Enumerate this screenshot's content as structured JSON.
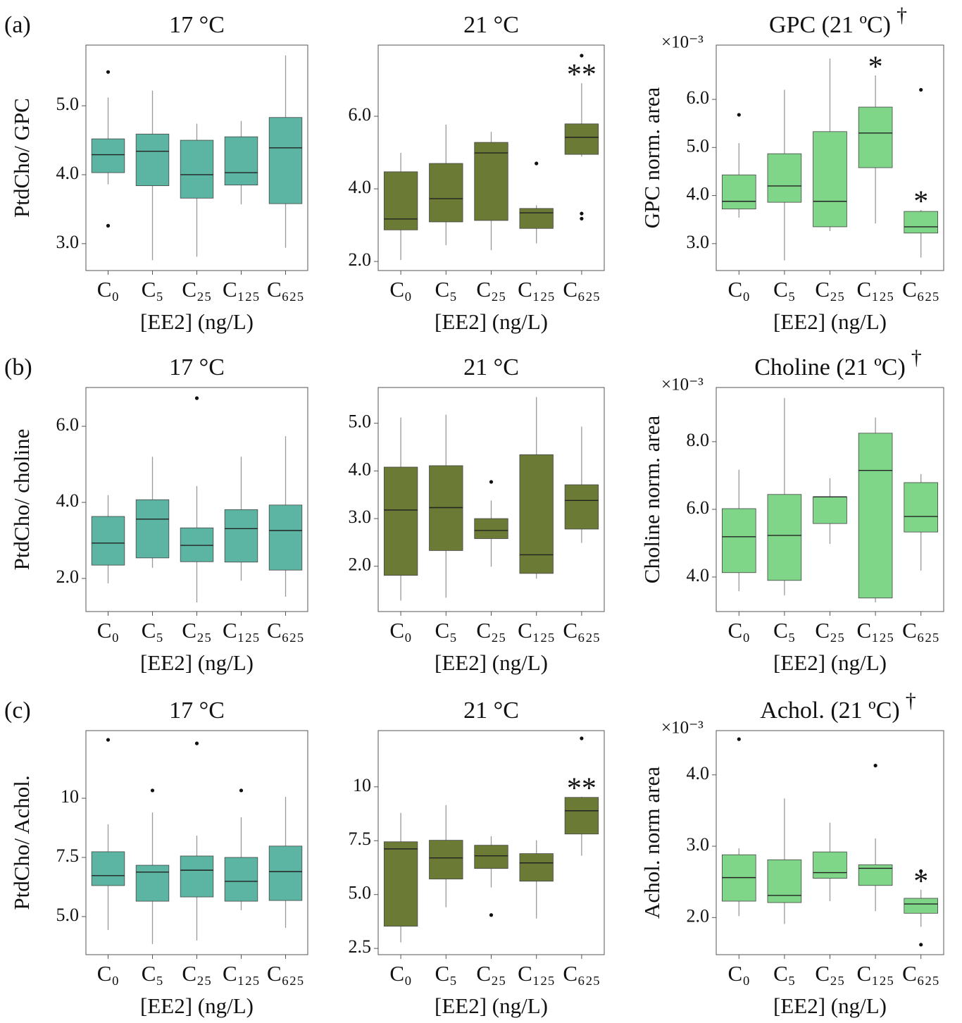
{
  "chart_data": [
    {
      "type": "box",
      "panel_label": "(a)",
      "title": "17 °C",
      "ylabel": "PtdCho/ GPC",
      "xlabel": "[EE2] (ng/L)",
      "color": "#5bb5a2",
      "categories": [
        "C₀",
        "C₅",
        "C₂₅",
        "C₁₂₅",
        "C₆₂₅"
      ],
      "ylim": [
        2.61,
        5.88
      ],
      "yticks": [
        {
          "value": 3,
          "label": "3.0"
        },
        {
          "value": 4,
          "label": "4.0"
        },
        {
          "value": 5,
          "label": "5.0"
        }
      ],
      "boxes": [
        {
          "min": 3.86,
          "q1": 4.03,
          "median": 4.29,
          "q3": 4.52,
          "max": 5.12,
          "outliers": [
            5.49,
            3.26
          ]
        },
        {
          "min": 2.76,
          "q1": 3.84,
          "median": 4.34,
          "q3": 4.59,
          "max": 5.22
        },
        {
          "min": 2.81,
          "q1": 3.66,
          "median": 4.0,
          "q3": 4.5,
          "max": 4.74
        },
        {
          "min": 3.57,
          "q1": 3.85,
          "median": 4.03,
          "q3": 4.55,
          "max": 4.78
        },
        {
          "min": 2.94,
          "q1": 3.58,
          "median": 4.39,
          "q3": 4.83,
          "max": 5.73
        }
      ]
    },
    {
      "type": "box",
      "title": "21 °C",
      "xlabel": "[EE2] (ng/L)",
      "color": "#6b7a35",
      "categories": [
        "C₀",
        "C₅",
        "C₂₅",
        "C₁₂₅",
        "C₆₂₅"
      ],
      "ylim": [
        1.75,
        7.96
      ],
      "yticks": [
        {
          "value": 2,
          "label": "2.0"
        },
        {
          "value": 4,
          "label": "4.0"
        },
        {
          "value": 6,
          "label": "6.0"
        }
      ],
      "boxes": [
        {
          "min": 2.04,
          "q1": 2.87,
          "median": 3.17,
          "q3": 4.47,
          "max": 4.99
        },
        {
          "min": 2.45,
          "q1": 3.09,
          "median": 3.73,
          "q3": 4.7,
          "max": 5.77
        },
        {
          "min": 2.31,
          "q1": 3.13,
          "median": 4.99,
          "q3": 5.28,
          "max": 5.57
        },
        {
          "min": 2.5,
          "q1": 2.91,
          "median": 3.34,
          "q3": 3.46,
          "max": 3.55,
          "outliers": [
            4.7
          ]
        },
        {
          "min": 4.89,
          "q1": 4.95,
          "median": 5.42,
          "q3": 5.79,
          "max": 6.91,
          "outliers": [
            7.67,
            3.32,
            3.18
          ]
        }
      ],
      "annotations": [
        {
          "category": "C₆₂₅",
          "text": "**"
        }
      ]
    },
    {
      "type": "box",
      "title": "GPC (21 ºC)",
      "dagger": "†",
      "exponent_label": "×10⁻³",
      "ylabel": "GPC norm. area",
      "xlabel": "[EE2] (ng/L)",
      "color": "#7fd688",
      "categories": [
        "C₀",
        "C₅",
        "C₂₅",
        "C₁₂₅",
        "C₆₂₅"
      ],
      "ylim": [
        2.44,
        7.13
      ],
      "yticks": [
        {
          "value": 3,
          "label": "3.0"
        },
        {
          "value": 4,
          "label": "4.0"
        },
        {
          "value": 5,
          "label": "5.0"
        },
        {
          "value": 6,
          "label": "6.0"
        }
      ],
      "boxes": [
        {
          "min": 3.54,
          "q1": 3.72,
          "median": 3.88,
          "q3": 4.43,
          "max": 5.09,
          "outliers": [
            5.68
          ]
        },
        {
          "min": 2.65,
          "q1": 3.86,
          "median": 4.2,
          "q3": 4.87,
          "max": 6.2
        },
        {
          "min": 3.26,
          "q1": 3.35,
          "median": 3.88,
          "q3": 5.33,
          "max": 6.85
        },
        {
          "min": 3.42,
          "q1": 4.58,
          "median": 5.3,
          "q3": 5.84,
          "max": 6.5
        },
        {
          "min": 2.71,
          "q1": 3.22,
          "median": 3.35,
          "q3": 3.67,
          "max": 3.7,
          "outliers": [
            6.2
          ]
        }
      ],
      "annotations": [
        {
          "category": "C₁₂₅",
          "text": "*"
        },
        {
          "category": "C₆₂₅",
          "text": "*"
        }
      ]
    },
    {
      "type": "box",
      "panel_label": "(b)",
      "title": "17 °C",
      "ylabel": "PtdCho/ choline",
      "xlabel": "[EE2] (ng/L)",
      "color": "#5bb5a2",
      "categories": [
        "C₀",
        "C₅",
        "C₂₅",
        "C₁₂₅",
        "C₆₂₅"
      ],
      "ylim": [
        1.13,
        7.02
      ],
      "yticks": [
        {
          "value": 2,
          "label": "2.0"
        },
        {
          "value": 4,
          "label": "4.0"
        },
        {
          "value": 6,
          "label": "6.0"
        }
      ],
      "boxes": [
        {
          "min": 1.87,
          "q1": 2.35,
          "median": 2.93,
          "q3": 3.63,
          "max": 4.19
        },
        {
          "min": 2.28,
          "q1": 2.54,
          "median": 3.56,
          "q3": 4.07,
          "max": 5.2
        },
        {
          "min": 1.37,
          "q1": 2.44,
          "median": 2.87,
          "q3": 3.33,
          "max": 4.43,
          "outliers": [
            6.74
          ]
        },
        {
          "min": 1.94,
          "q1": 2.43,
          "median": 3.31,
          "q3": 3.81,
          "max": 5.2
        },
        {
          "min": 1.52,
          "q1": 2.22,
          "median": 3.26,
          "q3": 3.93,
          "max": 5.74
        }
      ]
    },
    {
      "type": "box",
      "title": "21 °C",
      "xlabel": "[EE2] (ng/L)",
      "color": "#6b7a35",
      "categories": [
        "C₀",
        "C₅",
        "C₂₅",
        "C₁₂₅",
        "C₆₂₅"
      ],
      "ylim": [
        1.05,
        5.75
      ],
      "yticks": [
        {
          "value": 2,
          "label": "2.0"
        },
        {
          "value": 3,
          "label": "3.0"
        },
        {
          "value": 4,
          "label": "4.0"
        },
        {
          "value": 5,
          "label": "5.0"
        }
      ],
      "boxes": [
        {
          "min": 1.28,
          "q1": 1.81,
          "median": 3.18,
          "q3": 4.08,
          "max": 5.12
        },
        {
          "min": 1.34,
          "q1": 2.33,
          "median": 3.23,
          "q3": 4.11,
          "max": 5.18
        },
        {
          "min": 1.99,
          "q1": 2.58,
          "median": 2.75,
          "q3": 3.0,
          "max": 3.38,
          "outliers": [
            3.77
          ]
        },
        {
          "min": 1.74,
          "q1": 1.85,
          "median": 2.24,
          "q3": 4.34,
          "max": 5.55
        },
        {
          "min": 2.49,
          "q1": 2.78,
          "median": 3.38,
          "q3": 3.71,
          "max": 4.93
        }
      ]
    },
    {
      "type": "box",
      "title": "Choline (21 ºC)",
      "dagger": "†",
      "exponent_label": "×10⁻³",
      "ylabel": "Choline norm. area",
      "xlabel": "[EE2] (ng/L)",
      "color": "#7fd688",
      "categories": [
        "C₀",
        "C₅",
        "C₂₅",
        "C₁₂₅",
        "C₆₂₅"
      ],
      "ylim": [
        2.98,
        9.6
      ],
      "yticks": [
        {
          "value": 4,
          "label": "4.0"
        },
        {
          "value": 6,
          "label": "6.0"
        },
        {
          "value": 8,
          "label": "8.0"
        }
      ],
      "boxes": [
        {
          "min": 3.58,
          "q1": 4.13,
          "median": 5.19,
          "q3": 6.02,
          "max": 7.17
        },
        {
          "min": 3.46,
          "q1": 3.9,
          "median": 5.23,
          "q3": 6.44,
          "max": 9.29
        },
        {
          "min": 4.98,
          "q1": 5.58,
          "median": 6.37,
          "q3": 6.37,
          "max": 6.92
        },
        {
          "min": 3.25,
          "q1": 3.38,
          "median": 7.15,
          "q3": 8.25,
          "max": 8.71
        },
        {
          "min": 4.19,
          "q1": 5.33,
          "median": 5.79,
          "q3": 6.79,
          "max": 7.04
        }
      ]
    },
    {
      "type": "box",
      "panel_label": "(c)",
      "title": "17 °C",
      "ylabel": "PtdCho/ Achol.",
      "xlabel": "[EE2] (ng/L)",
      "color": "#5bb5a2",
      "categories": [
        "C₀",
        "C₅",
        "C₂₅",
        "C₁₂₅",
        "C₆₂₅"
      ],
      "ylim": [
        3.39,
        12.86
      ],
      "yticks": [
        {
          "value": 5,
          "label": "5.0"
        },
        7.5,
        10
      ],
      "boxes": [
        {
          "min": 4.43,
          "q1": 6.31,
          "median": 6.73,
          "q3": 7.74,
          "max": 8.9,
          "outliers": [
            12.47
          ]
        },
        {
          "min": 3.84,
          "q1": 5.65,
          "median": 6.88,
          "q3": 7.17,
          "max": 9.4,
          "outliers": [
            10.33
          ]
        },
        {
          "min": 3.99,
          "q1": 5.83,
          "median": 6.96,
          "q3": 7.56,
          "max": 8.42,
          "outliers": [
            12.32
          ]
        },
        {
          "min": 5.27,
          "q1": 5.65,
          "median": 6.49,
          "q3": 7.5,
          "max": 9.2,
          "outliers": [
            10.33
          ]
        },
        {
          "min": 4.52,
          "q1": 5.68,
          "median": 6.9,
          "q3": 7.98,
          "max": 10.06
        }
      ]
    },
    {
      "type": "box",
      "title": "21 °C",
      "xlabel": "[EE2] (ng/L)",
      "color": "#6b7a35",
      "categories": [
        "C₀",
        "C₅",
        "C₂₅",
        "C₁₂₅",
        "C₆₂₅"
      ],
      "ylim": [
        2.21,
        12.61
      ],
      "yticks": [
        2.5,
        {
          "value": 5,
          "label": "5.0"
        },
        7.5,
        10
      ],
      "boxes": [
        {
          "min": 2.78,
          "q1": 3.53,
          "median": 7.12,
          "q3": 7.45,
          "max": 8.79
        },
        {
          "min": 4.41,
          "q1": 5.72,
          "median": 6.7,
          "q3": 7.52,
          "max": 9.15
        },
        {
          "min": 5.33,
          "q1": 6.21,
          "median": 6.8,
          "q3": 7.29,
          "max": 7.71,
          "outliers": [
            4.05
          ]
        },
        {
          "min": 3.89,
          "q1": 5.62,
          "median": 6.47,
          "q3": 6.9,
          "max": 7.52
        },
        {
          "min": 6.8,
          "q1": 7.81,
          "median": 8.89,
          "q3": 9.51,
          "max": 9.54,
          "outliers": [
            12.25
          ]
        }
      ],
      "annotations": [
        {
          "category": "C₆₂₅",
          "text": "**"
        }
      ]
    },
    {
      "type": "box",
      "title": "Achol. (21 ºC)",
      "dagger": "†",
      "exponent_label": "×10⁻³",
      "ylabel": "Achol. norm area",
      "xlabel": "[EE2] (ng/L)",
      "color": "#7fd688",
      "categories": [
        "C₀",
        "C₅",
        "C₂₅",
        "C₁₂₅",
        "C₆₂₅"
      ],
      "ylim": [
        1.48,
        4.62
      ],
      "yticks": [
        {
          "value": 2,
          "label": "2.0"
        },
        {
          "value": 3,
          "label": "3.0"
        },
        {
          "value": 4,
          "label": "4.0"
        }
      ],
      "boxes": [
        {
          "min": 2.02,
          "q1": 2.23,
          "median": 2.56,
          "q3": 2.88,
          "max": 2.97,
          "outliers": [
            4.5
          ]
        },
        {
          "min": 1.91,
          "q1": 2.21,
          "median": 2.31,
          "q3": 2.81,
          "max": 3.67
        },
        {
          "min": 2.23,
          "q1": 2.55,
          "median": 2.63,
          "q3": 2.92,
          "max": 3.33
        },
        {
          "min": 2.09,
          "q1": 2.45,
          "median": 2.69,
          "q3": 2.74,
          "max": 3.11,
          "outliers": [
            4.13
          ]
        },
        {
          "min": 1.87,
          "q1": 2.06,
          "median": 2.19,
          "q3": 2.27,
          "max": 2.39,
          "outliers": [
            2.65,
            1.62
          ]
        }
      ],
      "annotations": [
        {
          "category": "C₆₂₅",
          "text": "*"
        }
      ]
    }
  ]
}
